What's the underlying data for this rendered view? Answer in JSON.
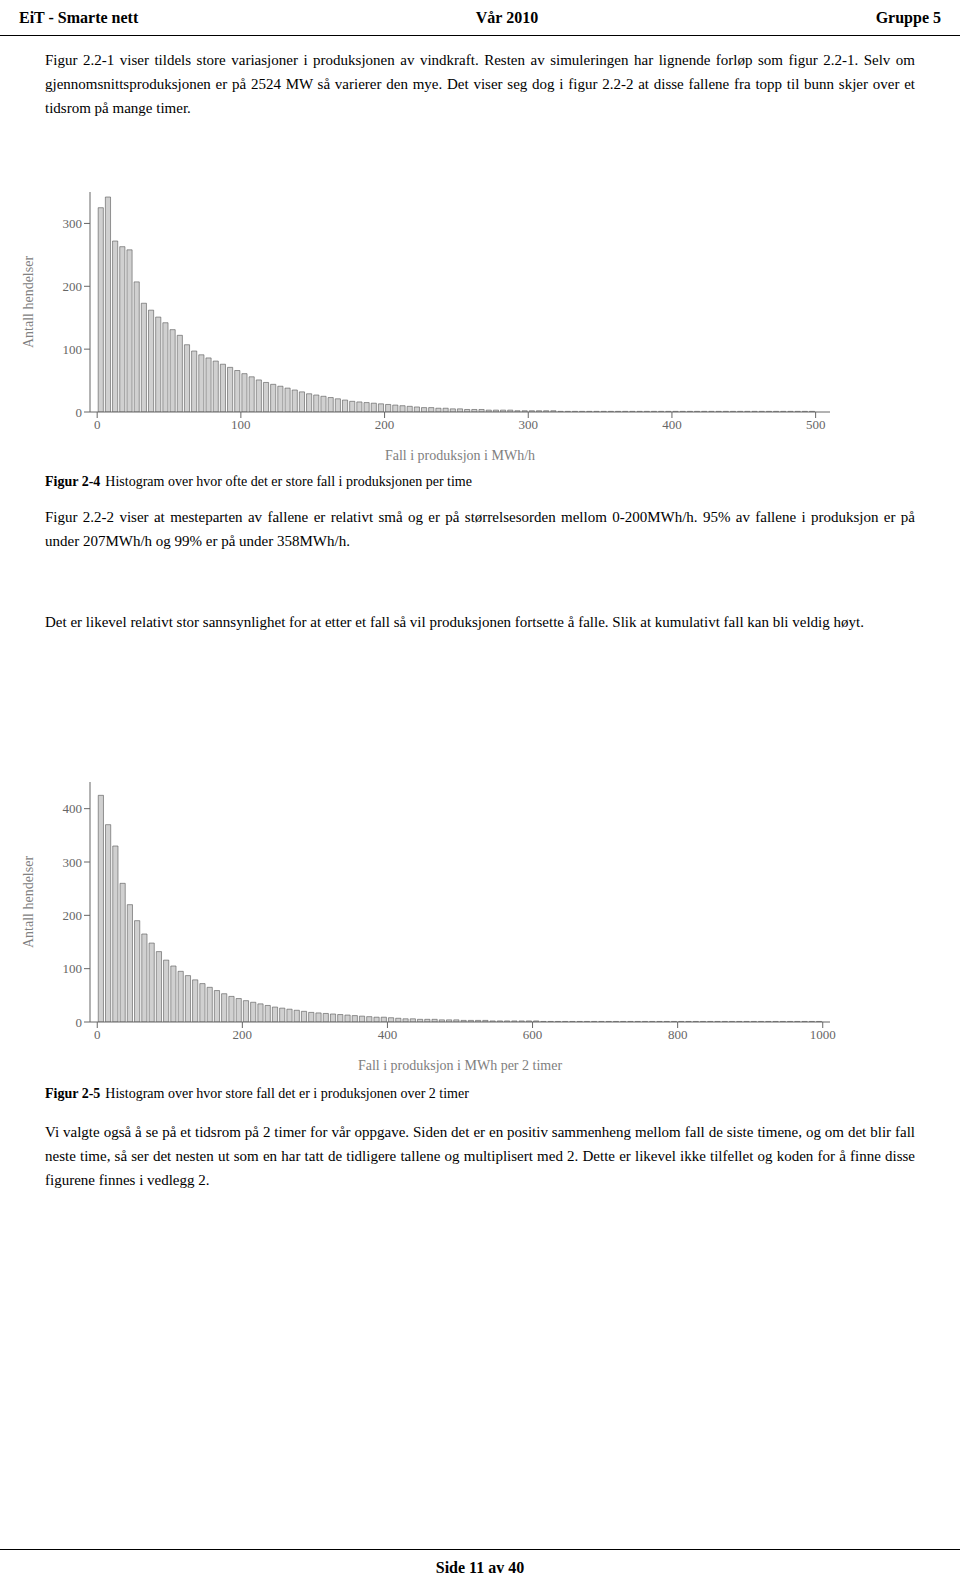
{
  "header": [
    "EiT - Smarte nett",
    "Vår 2010",
    "Gruppe 5"
  ],
  "paragraphs": [
    "Figur 2.2-1 viser tildels store variasjoner i produksjonen av vindkraft. Resten av simuleringen har lignende forløp som figur 2.2-1. Selv om gjennomsnittsproduksjonen er på 2524 MW så varierer den mye. Det viser seg dog i figur 2.2-2 at disse fallene fra topp til bunn skjer over et tidsrom på mange timer.",
    "Figur 2.2-2 viser at mesteparten av fallene er relativt små og er på størrelsesorden mellom 0-200MWh/h. 95% av fallene i produksjon er på under 207MWh/h og 99% er på under 358MWh/h.",
    "Det er likevel relativt stor sannsynlighet for at etter et fall så vil produksjonen fortsette å falle. Slik at kumulativt fall kan bli veldig høyt.",
    "Vi valgte også å se på et tidsrom på 2 timer for vår oppgave. Siden det er en positiv sammenheng mellom fall de siste timene, og om det blir fall neste time, så ser det nesten ut som en har tatt de tidligere tallene og multiplisert med 2. Dette er likevel ikke tilfellet og koden for å finne disse figurene finnes i vedlegg 2."
  ],
  "footer": "Side 11 av 40",
  "chart_data": [
    {
      "type": "bar",
      "title": "Figur 2-4",
      "subtitle": "Histogram over hvor ofte det er store fall i produksjonen per time",
      "xlabel": "Fall i produksjon i MWh/h",
      "ylabel": "Antall hendelser",
      "xlim": [
        -5,
        510
      ],
      "ylim": [
        0,
        350
      ],
      "xticks": [
        0,
        100,
        200,
        300,
        400,
        500
      ],
      "yticks": [
        0,
        100,
        200,
        300
      ],
      "color": "#d0d0d0",
      "grid": false,
      "bins": [
        0,
        5,
        10,
        15,
        20,
        25,
        30,
        35,
        40,
        45,
        50,
        55,
        60,
        65,
        70,
        75,
        80,
        85,
        90,
        95,
        100,
        105,
        110,
        115,
        120,
        125,
        130,
        135,
        140,
        145,
        150,
        155,
        160,
        165,
        170,
        175,
        180,
        185,
        190,
        195,
        200,
        205,
        210,
        215,
        220,
        225,
        230,
        235,
        240,
        245,
        250,
        255,
        260,
        265,
        270,
        275,
        280,
        285,
        290,
        295,
        300,
        305,
        310,
        315,
        320,
        325,
        330,
        335,
        340,
        345,
        350,
        355,
        360,
        365,
        370,
        375,
        380,
        385,
        390,
        395,
        400,
        405,
        410,
        415,
        420,
        425,
        430,
        435,
        440,
        445,
        450,
        455,
        460,
        465,
        470,
        475,
        480,
        485,
        490,
        495,
        500
      ],
      "values": [
        325,
        342,
        272,
        263,
        258,
        207,
        173,
        162,
        151,
        142,
        131,
        122,
        107,
        97,
        91,
        86,
        81,
        76,
        71,
        66,
        61,
        56,
        51,
        47,
        44,
        41,
        38,
        35,
        32,
        29,
        27,
        25,
        23,
        21,
        19,
        17,
        16,
        15,
        14,
        13,
        12,
        11,
        10,
        9,
        8,
        7,
        7,
        6,
        6,
        5,
        5,
        4,
        4,
        4,
        3,
        3,
        3,
        3,
        2,
        2,
        2,
        2,
        2,
        2,
        1,
        1,
        1,
        1,
        1,
        1,
        1,
        1,
        1,
        1,
        1,
        1,
        1,
        1,
        1,
        1,
        1,
        1,
        1,
        1,
        1,
        1,
        1,
        1,
        1,
        1,
        1,
        1,
        1,
        1,
        1,
        1,
        1,
        1,
        1,
        1
      ]
    },
    {
      "type": "bar",
      "title": "Figur 2-5",
      "subtitle": "Histogram over hvor store fall det er i produksjonen over 2 timer",
      "xlabel": "Fall i produksjon i MWh per 2 timer",
      "ylabel": "Antall hendelser",
      "xlim": [
        -10,
        1010
      ],
      "ylim": [
        0,
        450
      ],
      "xticks": [
        0,
        200,
        400,
        600,
        800,
        1000
      ],
      "yticks": [
        0,
        100,
        200,
        300,
        400
      ],
      "color": "#d0d0d0",
      "grid": false,
      "bins": [
        0,
        10,
        20,
        30,
        40,
        50,
        60,
        70,
        80,
        90,
        100,
        110,
        120,
        130,
        140,
        150,
        160,
        170,
        180,
        190,
        200,
        210,
        220,
        230,
        240,
        250,
        260,
        270,
        280,
        290,
        300,
        310,
        320,
        330,
        340,
        350,
        360,
        370,
        380,
        390,
        400,
        410,
        420,
        430,
        440,
        450,
        460,
        470,
        480,
        490,
        500,
        510,
        520,
        530,
        540,
        550,
        560,
        570,
        580,
        590,
        600,
        610,
        620,
        630,
        640,
        650,
        660,
        670,
        680,
        690,
        700,
        710,
        720,
        730,
        740,
        750,
        760,
        770,
        780,
        790,
        800,
        810,
        820,
        830,
        840,
        850,
        860,
        870,
        880,
        890,
        900,
        910,
        920,
        930,
        940,
        950,
        960,
        970,
        980,
        990,
        1000
      ],
      "values": [
        425,
        370,
        330,
        260,
        220,
        190,
        165,
        148,
        132,
        116,
        105,
        95,
        87,
        79,
        72,
        65,
        59,
        53,
        48,
        44,
        40,
        37,
        34,
        31,
        28,
        26,
        24,
        22,
        20,
        18,
        17,
        16,
        15,
        14,
        13,
        12,
        11,
        10,
        9,
        9,
        8,
        7,
        6,
        6,
        5,
        5,
        5,
        4,
        4,
        4,
        3,
        3,
        3,
        3,
        2,
        2,
        2,
        2,
        2,
        2,
        2,
        1,
        1,
        1,
        1,
        1,
        1,
        1,
        1,
        1,
        1,
        1,
        1,
        1,
        1,
        1,
        1,
        1,
        1,
        1,
        1,
        1,
        1,
        1,
        1,
        1,
        1,
        1,
        1,
        1,
        1,
        1,
        1,
        1,
        1,
        1,
        1,
        1,
        1,
        1
      ]
    }
  ]
}
